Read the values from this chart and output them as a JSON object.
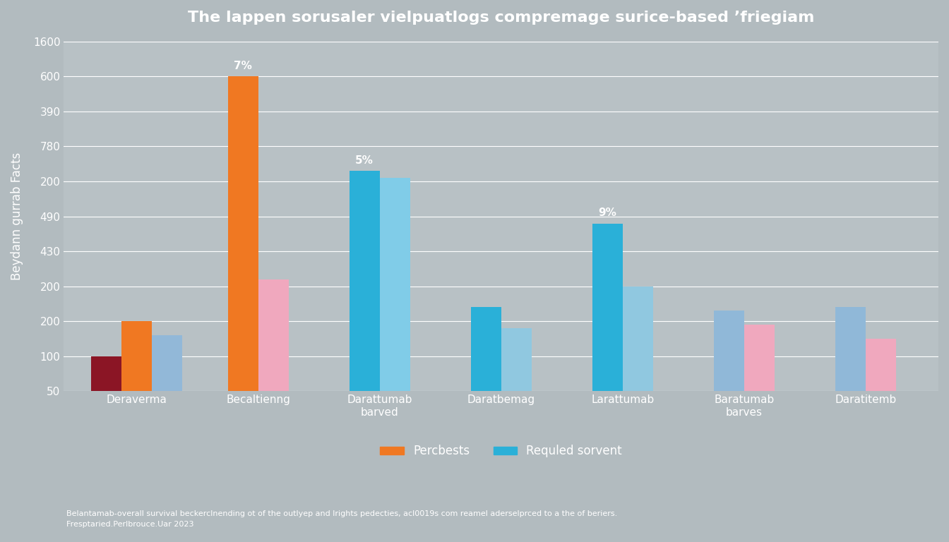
{
  "title": "The lappen sorusaler vielpuatlogs compremage surice-based ’friegiam",
  "ylabel": "Beydann gurrab Facts",
  "background_color": "#b2bbbf",
  "plot_background_color": "#b8c1c5",
  "legend_labels": [
    "Percbests",
    "Requled sorvent"
  ],
  "legend_colors": [
    "#f07822",
    "#2ab0d8"
  ],
  "footnote1": "Belantamab-overall survival beckerclnending ot of the outlyep and lrights pedecties, acl0019s com reamel aderselprced to a the of beriers.",
  "footnote2": "Fresptaried.Perlbrouce.Uar 2023",
  "ytick_labels": [
    "50",
    "100",
    "200",
    "200",
    "430",
    "490",
    "200",
    "780",
    "390",
    "600",
    "1600"
  ],
  "bars": [
    {
      "label": "Deraverma",
      "values": [
        1,
        2,
        1.6
      ],
      "colors": [
        "#8b1525",
        "#f07822",
        "#92b8d8"
      ]
    },
    {
      "label": "Becaltienng",
      "values": [
        9,
        3.2
      ],
      "colors": [
        "#f07822",
        "#f0a8be"
      ],
      "annotation": {
        "bar_idx": 0,
        "text": "7%"
      }
    },
    {
      "label": "Darattumab\nbarved",
      "values": [
        6.3,
        6.1
      ],
      "colors": [
        "#2ab0d8",
        "#80cce8"
      ],
      "annotation": {
        "bar_idx": 0,
        "text": "5%"
      }
    },
    {
      "label": "Daratbemag",
      "values": [
        2.4,
        1.8
      ],
      "colors": [
        "#2ab0d8",
        "#90c8e0"
      ]
    },
    {
      "label": "Larattumab",
      "values": [
        4.8,
        3.0
      ],
      "colors": [
        "#2ab0d8",
        "#90c8e0"
      ],
      "annotation": {
        "bar_idx": 0,
        "text": "9%"
      }
    },
    {
      "label": "Baratumab\nbarves",
      "values": [
        2.3,
        1.9
      ],
      "colors": [
        "#90b8d8",
        "#f0a8be"
      ]
    },
    {
      "label": "Daratitemb",
      "values": [
        2.4,
        1.5
      ],
      "colors": [
        "#90b8d8",
        "#f0a8be"
      ]
    }
  ],
  "grid_color": "#ffffff",
  "title_color": "#ffffff",
  "label_color": "#ffffff",
  "tick_color": "#ffffff"
}
